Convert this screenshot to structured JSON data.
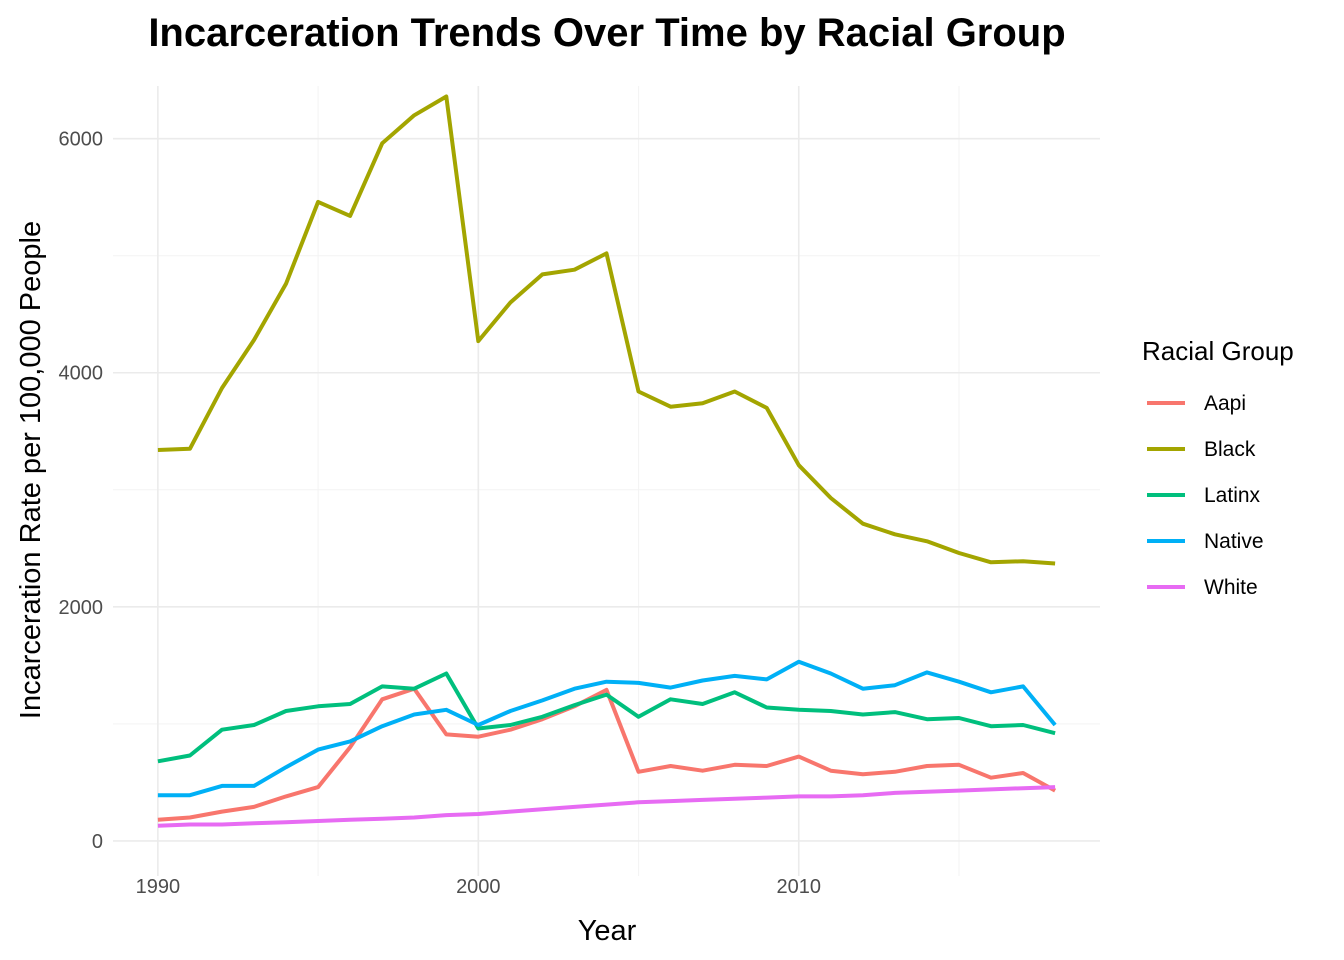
{
  "chart_data": {
    "type": "line",
    "title": "Incarceration Trends Over Time by Racial Group",
    "xlabel": "Year",
    "ylabel": "Incarceration Rate per 100,000 People",
    "xlim": [
      1990,
      2018
    ],
    "ylim": [
      0,
      6400
    ],
    "x_ticks": [
      1990,
      2000,
      2010
    ],
    "y_ticks": [
      0,
      2000,
      4000,
      6000
    ],
    "grid": true,
    "legend": {
      "title": "Racial Group",
      "position": "right"
    },
    "x": [
      1990,
      1991,
      1992,
      1993,
      1994,
      1995,
      1996,
      1997,
      1998,
      1999,
      2000,
      2001,
      2002,
      2003,
      2004,
      2005,
      2006,
      2007,
      2008,
      2009,
      2010,
      2011,
      2012,
      2013,
      2014,
      2015,
      2016,
      2017,
      2018
    ],
    "series": [
      {
        "name": "Aapi",
        "color": "#F8766D",
        "values": [
          180,
          200,
          250,
          290,
          380,
          460,
          800,
          1210,
          1300,
          910,
          890,
          950,
          1040,
          1150,
          1290,
          590,
          640,
          600,
          650,
          640,
          720,
          600,
          570,
          590,
          640,
          650,
          540,
          580,
          430
        ]
      },
      {
        "name": "Black",
        "color": "#A3A500",
        "values": [
          3340,
          3350,
          3870,
          4280,
          4760,
          5460,
          5340,
          5960,
          6200,
          6360,
          4270,
          4600,
          4840,
          4880,
          5020,
          3840,
          3710,
          3740,
          3840,
          3700,
          3210,
          2930,
          2710,
          2620,
          2560,
          2460,
          2380,
          2390,
          2370
        ]
      },
      {
        "name": "Latinx",
        "color": "#00BF7D",
        "values": [
          680,
          730,
          950,
          990,
          1110,
          1150,
          1170,
          1320,
          1300,
          1430,
          960,
          990,
          1060,
          1160,
          1250,
          1060,
          1210,
          1170,
          1270,
          1140,
          1120,
          1110,
          1080,
          1100,
          1040,
          1050,
          980,
          990,
          920
        ]
      },
      {
        "name": "Native",
        "color": "#00B0F6",
        "values": [
          390,
          390,
          470,
          470,
          630,
          780,
          850,
          980,
          1080,
          1120,
          990,
          1110,
          1200,
          1300,
          1360,
          1350,
          1310,
          1370,
          1410,
          1380,
          1530,
          1430,
          1300,
          1330,
          1440,
          1360,
          1270,
          1320,
          990
        ]
      },
      {
        "name": "White",
        "color": "#E76BF3",
        "values": [
          130,
          140,
          140,
          150,
          160,
          170,
          180,
          190,
          200,
          220,
          230,
          250,
          270,
          290,
          310,
          330,
          340,
          350,
          360,
          370,
          380,
          380,
          390,
          410,
          420,
          430,
          440,
          450,
          460
        ]
      }
    ]
  }
}
